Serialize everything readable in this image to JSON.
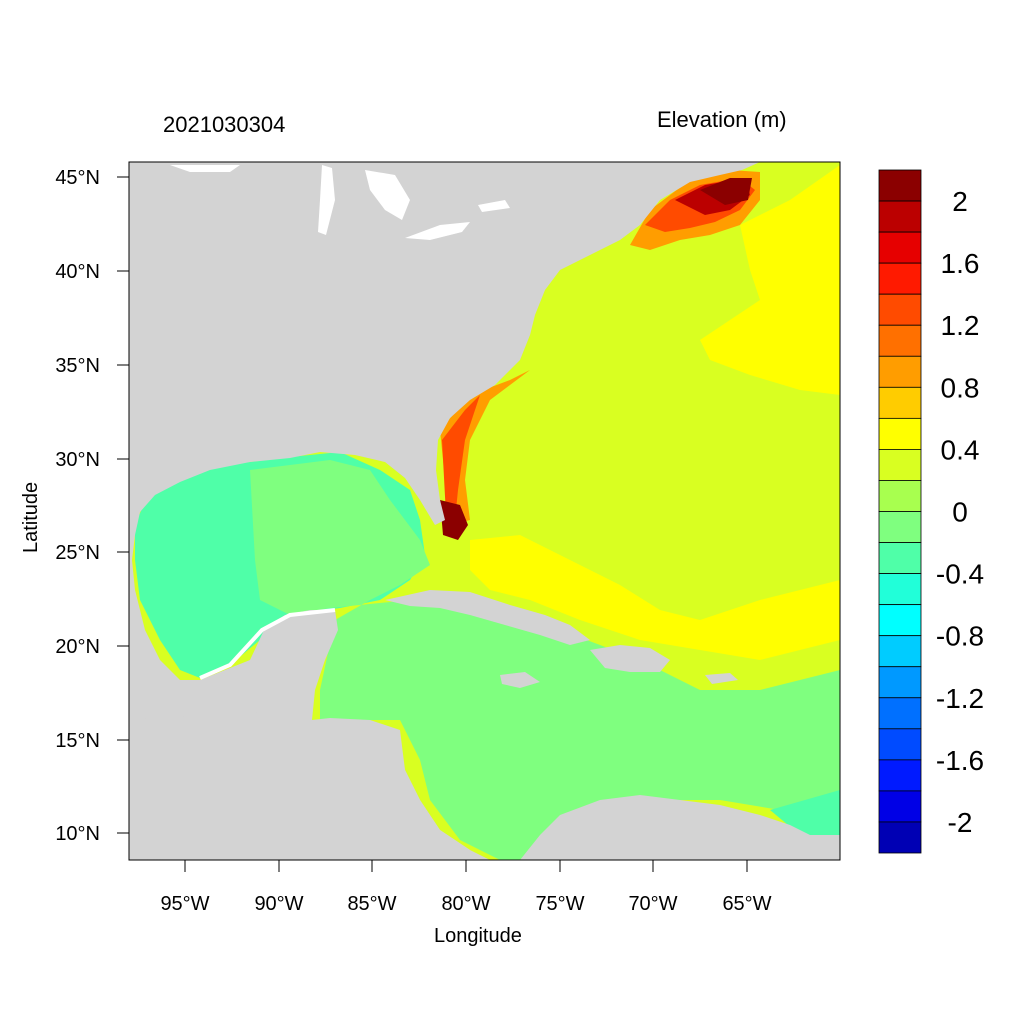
{
  "map": {
    "timestamp": "2021030304",
    "variable_title": "Elevation (m)",
    "xlabel": "Longitude",
    "ylabel": "Latitude",
    "lon_ticks": [
      "95°W",
      "90°W",
      "85°W",
      "80°W",
      "75°W",
      "70°W",
      "65°W"
    ],
    "lat_ticks": [
      "45°N",
      "40°N",
      "35°N",
      "30°N",
      "25°N",
      "20°N",
      "15°N",
      "10°N"
    ],
    "land_color": "#d3d3d3"
  },
  "colorbar": {
    "labels": [
      "2",
      "1.6",
      "1.2",
      "0.8",
      "0.4",
      "0",
      "-0.4",
      "-0.8",
      "-1.2",
      "-1.6",
      "-2"
    ],
    "colors": [
      "#8b0000",
      "#bb0000",
      "#e60000",
      "#ff1a00",
      "#ff4b00",
      "#ff7000",
      "#ff9d00",
      "#ffcc00",
      "#ffff00",
      "#d9ff21",
      "#a8ff4f",
      "#7fff7f",
      "#4fffa8",
      "#21ffd9",
      "#00ffff",
      "#00ccff",
      "#0099ff",
      "#0070ff",
      "#004bff",
      "#001aff",
      "#0000e6",
      "#0000b4"
    ]
  }
}
